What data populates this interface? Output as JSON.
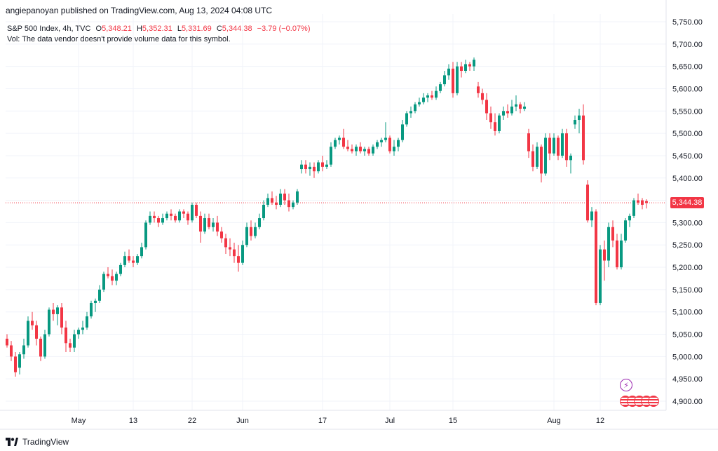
{
  "header": {
    "text": "angiepanoyan published on TradingView.com, Aug 13, 2024 04:08 UTC"
  },
  "legend": {
    "symbol": "S&P 500 Index, 4h, TVC",
    "open_label": "O",
    "open": "5,348.21",
    "high_label": "H",
    "high": "5,352.31",
    "low_label": "L",
    "low": "5,331.69",
    "close_label": "C",
    "close": "5,344.38",
    "change": "−3.79 (−0.07%)",
    "volume_note": "Vol: The data vendor doesn't provide volume data for this symbol."
  },
  "price_tag": "5,344.38",
  "footer": {
    "brand": "TradingView"
  },
  "colors": {
    "up": "#089981",
    "down": "#f23645",
    "grid": "#f0f3fa",
    "axis": "#e0e3eb",
    "event": "#9c27b0"
  },
  "icons": {
    "event_flash": "lightning-icon",
    "event_flag": "us-flag-icon"
  },
  "event_flash_glyph": "⚡",
  "chart_data": {
    "type": "candlestick",
    "title": "S&P 500 Index, 4h, TVC",
    "ylabel": "",
    "xlabel": "",
    "ylim": [
      4875,
      5760
    ],
    "y_ticks": [
      "5,750.00",
      "5,700.00",
      "5,650.00",
      "5,600.00",
      "5,550.00",
      "5,500.00",
      "5,450.00",
      "5,400.00",
      "5,350.00",
      "5,300.00",
      "5,250.00",
      "5,200.00",
      "5,150.00",
      "5,100.00",
      "5,050.00",
      "5,000.00",
      "4,950.00",
      "4,900.00"
    ],
    "x_ticks": [
      {
        "label": "May",
        "index": 17
      },
      {
        "label": "13",
        "index": 30
      },
      {
        "label": "22",
        "index": 44
      },
      {
        "label": "Jun",
        "index": 56
      },
      {
        "label": "17",
        "index": 75
      },
      {
        "label": "Jul",
        "index": 91
      },
      {
        "label": "15",
        "index": 106
      },
      {
        "label": "Aug",
        "index": 130
      },
      {
        "label": "12",
        "index": 141
      }
    ],
    "last_close": 5344.38,
    "candles": [
      [
        5040,
        5050,
        5020,
        5025
      ],
      [
        5025,
        5035,
        4990,
        5000
      ],
      [
        5000,
        5010,
        4955,
        4965
      ],
      [
        4975,
        5010,
        4960,
        5005
      ],
      [
        5005,
        5040,
        4995,
        5025
      ],
      [
        5025,
        5090,
        5020,
        5080
      ],
      [
        5080,
        5100,
        5060,
        5070
      ],
      [
        5070,
        5080,
        5025,
        5040
      ],
      [
        5040,
        5045,
        4990,
        5000
      ],
      [
        5000,
        5060,
        4995,
        5050
      ],
      [
        5050,
        5110,
        5045,
        5105
      ],
      [
        5105,
        5120,
        5080,
        5095
      ],
      [
        5095,
        5115,
        5070,
        5110
      ],
      [
        5110,
        5120,
        5050,
        5065
      ],
      [
        5065,
        5080,
        5010,
        5030
      ],
      [
        5030,
        5040,
        5010,
        5020
      ],
      [
        5020,
        5060,
        5010,
        5050
      ],
      [
        5050,
        5065,
        5040,
        5060
      ],
      [
        5060,
        5080,
        5050,
        5065
      ],
      [
        5065,
        5100,
        5060,
        5090
      ],
      [
        5090,
        5125,
        5085,
        5120
      ],
      [
        5120,
        5130,
        5100,
        5125
      ],
      [
        5125,
        5160,
        5120,
        5150
      ],
      [
        5150,
        5190,
        5145,
        5185
      ],
      [
        5185,
        5200,
        5175,
        5180
      ],
      [
        5180,
        5195,
        5160,
        5170
      ],
      [
        5170,
        5190,
        5160,
        5185
      ],
      [
        5185,
        5210,
        5180,
        5205
      ],
      [
        5205,
        5235,
        5200,
        5225
      ],
      [
        5225,
        5240,
        5210,
        5215
      ],
      [
        5215,
        5225,
        5200,
        5210
      ],
      [
        5210,
        5230,
        5205,
        5225
      ],
      [
        5225,
        5255,
        5220,
        5245
      ],
      [
        5245,
        5305,
        5240,
        5300
      ],
      [
        5300,
        5325,
        5295,
        5315
      ],
      [
        5315,
        5325,
        5300,
        5310
      ],
      [
        5310,
        5315,
        5290,
        5300
      ],
      [
        5300,
        5320,
        5295,
        5310
      ],
      [
        5310,
        5325,
        5305,
        5320
      ],
      [
        5320,
        5330,
        5305,
        5315
      ],
      [
        5315,
        5320,
        5300,
        5305
      ],
      [
        5305,
        5330,
        5300,
        5325
      ],
      [
        5325,
        5330,
        5310,
        5320
      ],
      [
        5320,
        5325,
        5295,
        5305
      ],
      [
        5305,
        5345,
        5300,
        5340
      ],
      [
        5340,
        5345,
        5310,
        5315
      ],
      [
        5315,
        5325,
        5255,
        5280
      ],
      [
        5280,
        5320,
        5275,
        5310
      ],
      [
        5310,
        5320,
        5285,
        5290
      ],
      [
        5290,
        5310,
        5280,
        5300
      ],
      [
        5300,
        5315,
        5270,
        5280
      ],
      [
        5280,
        5290,
        5255,
        5265
      ],
      [
        5265,
        5275,
        5230,
        5245
      ],
      [
        5245,
        5265,
        5225,
        5240
      ],
      [
        5240,
        5255,
        5210,
        5225
      ],
      [
        5225,
        5250,
        5190,
        5210
      ],
      [
        5210,
        5260,
        5205,
        5250
      ],
      [
        5250,
        5300,
        5245,
        5290
      ],
      [
        5290,
        5305,
        5260,
        5270
      ],
      [
        5270,
        5300,
        5265,
        5290
      ],
      [
        5290,
        5320,
        5285,
        5310
      ],
      [
        5310,
        5350,
        5305,
        5340
      ],
      [
        5340,
        5365,
        5335,
        5355
      ],
      [
        5355,
        5370,
        5340,
        5345
      ],
      [
        5345,
        5360,
        5330,
        5340
      ],
      [
        5340,
        5375,
        5335,
        5365
      ],
      [
        5365,
        5375,
        5340,
        5350
      ],
      [
        5350,
        5365,
        5325,
        5335
      ],
      [
        5335,
        5350,
        5330,
        5345
      ],
      [
        5345,
        5375,
        5340,
        5370
      ],
      [
        5420,
        5440,
        5410,
        5430
      ],
      [
        5430,
        5440,
        5410,
        5420
      ],
      [
        5420,
        5435,
        5405,
        5425
      ],
      [
        5425,
        5435,
        5400,
        5415
      ],
      [
        5415,
        5440,
        5410,
        5435
      ],
      [
        5435,
        5450,
        5415,
        5425
      ],
      [
        5425,
        5440,
        5420,
        5430
      ],
      [
        5430,
        5480,
        5425,
        5470
      ],
      [
        5470,
        5490,
        5465,
        5485
      ],
      [
        5485,
        5495,
        5475,
        5490
      ],
      [
        5490,
        5510,
        5465,
        5470
      ],
      [
        5470,
        5485,
        5460,
        5465
      ],
      [
        5465,
        5475,
        5455,
        5460
      ],
      [
        5460,
        5475,
        5450,
        5470
      ],
      [
        5470,
        5480,
        5455,
        5460
      ],
      [
        5460,
        5470,
        5450,
        5465
      ],
      [
        5465,
        5470,
        5450,
        5455
      ],
      [
        5455,
        5475,
        5450,
        5470
      ],
      [
        5470,
        5485,
        5465,
        5480
      ],
      [
        5480,
        5490,
        5470,
        5485
      ],
      [
        5485,
        5525,
        5480,
        5490
      ],
      [
        5490,
        5495,
        5455,
        5460
      ],
      [
        5460,
        5485,
        5450,
        5470
      ],
      [
        5470,
        5490,
        5460,
        5485
      ],
      [
        5485,
        5530,
        5480,
        5520
      ],
      [
        5520,
        5550,
        5515,
        5545
      ],
      [
        5545,
        5560,
        5535,
        5550
      ],
      [
        5550,
        5570,
        5545,
        5565
      ],
      [
        5565,
        5580,
        5560,
        5570
      ],
      [
        5570,
        5590,
        5565,
        5580
      ],
      [
        5580,
        5590,
        5570,
        5585
      ],
      [
        5585,
        5595,
        5575,
        5580
      ],
      [
        5580,
        5605,
        5575,
        5595
      ],
      [
        5595,
        5615,
        5590,
        5610
      ],
      [
        5610,
        5640,
        5605,
        5630
      ],
      [
        5630,
        5655,
        5620,
        5645
      ],
      [
        5645,
        5660,
        5580,
        5590
      ],
      [
        5590,
        5660,
        5585,
        5650
      ],
      [
        5650,
        5660,
        5625,
        5640
      ],
      [
        5640,
        5665,
        5635,
        5655
      ],
      [
        5655,
        5660,
        5640,
        5650
      ],
      [
        5650,
        5670,
        5640,
        5665
      ],
      [
        5605,
        5615,
        5580,
        5590
      ],
      [
        5590,
        5600,
        5565,
        5575
      ],
      [
        5575,
        5590,
        5530,
        5545
      ],
      [
        5545,
        5560,
        5510,
        5525
      ],
      [
        5525,
        5545,
        5495,
        5505
      ],
      [
        5505,
        5545,
        5500,
        5540
      ],
      [
        5540,
        5560,
        5530,
        5550
      ],
      [
        5550,
        5565,
        5535,
        5545
      ],
      [
        5545,
        5575,
        5540,
        5560
      ],
      [
        5560,
        5585,
        5550,
        5565
      ],
      [
        5565,
        5570,
        5545,
        5555
      ],
      [
        5555,
        5570,
        5550,
        5560
      ],
      [
        5500,
        5510,
        5445,
        5460
      ],
      [
        5460,
        5475,
        5415,
        5425
      ],
      [
        5425,
        5480,
        5420,
        5470
      ],
      [
        5470,
        5475,
        5390,
        5410
      ],
      [
        5410,
        5500,
        5405,
        5490
      ],
      [
        5490,
        5500,
        5440,
        5455
      ],
      [
        5455,
        5500,
        5450,
        5490
      ],
      [
        5490,
        5495,
        5440,
        5450
      ],
      [
        5450,
        5510,
        5445,
        5500
      ],
      [
        5500,
        5510,
        5425,
        5440
      ],
      [
        5440,
        5455,
        5410,
        5450
      ],
      [
        5520,
        5540,
        5510,
        5530
      ],
      [
        5530,
        5555,
        5500,
        5540
      ],
      [
        5540,
        5565,
        5430,
        5440
      ],
      [
        5385,
        5395,
        5300,
        5305
      ],
      [
        5305,
        5335,
        5290,
        5325
      ],
      [
        5325,
        5330,
        5115,
        5120
      ],
      [
        5120,
        5250,
        5115,
        5240
      ],
      [
        5240,
        5260,
        5170,
        5215
      ],
      [
        5215,
        5300,
        5200,
        5290
      ],
      [
        5290,
        5305,
        5245,
        5260
      ],
      [
        5260,
        5275,
        5195,
        5200
      ],
      [
        5200,
        5275,
        5195,
        5260
      ],
      [
        5260,
        5310,
        5255,
        5305
      ],
      [
        5305,
        5320,
        5290,
        5315
      ],
      [
        5315,
        5355,
        5310,
        5350
      ],
      [
        5350,
        5365,
        5340,
        5345
      ],
      [
        5350,
        5355,
        5330,
        5340
      ],
      [
        5348.21,
        5352.31,
        5331.69,
        5344.38
      ]
    ]
  }
}
